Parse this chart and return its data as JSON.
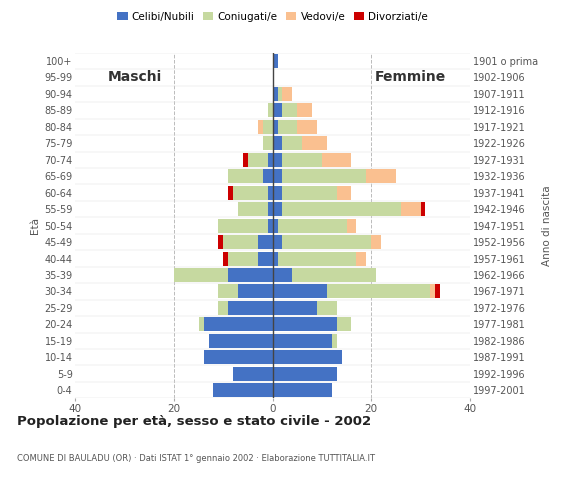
{
  "age_groups": [
    "0-4",
    "5-9",
    "10-14",
    "15-19",
    "20-24",
    "25-29",
    "30-34",
    "35-39",
    "40-44",
    "45-49",
    "50-54",
    "55-59",
    "60-64",
    "65-69",
    "70-74",
    "75-79",
    "80-84",
    "85-89",
    "90-94",
    "95-99",
    "100+"
  ],
  "birth_years": [
    "1997-2001",
    "1992-1996",
    "1987-1991",
    "1982-1986",
    "1977-1981",
    "1972-1976",
    "1967-1971",
    "1962-1966",
    "1957-1961",
    "1952-1956",
    "1947-1951",
    "1942-1946",
    "1937-1941",
    "1932-1936",
    "1927-1931",
    "1922-1926",
    "1917-1921",
    "1912-1916",
    "1907-1911",
    "1902-1906",
    "1901 o prima"
  ],
  "male": {
    "celibe": [
      12,
      8,
      14,
      13,
      14,
      9,
      7,
      9,
      3,
      3,
      1,
      1,
      1,
      2,
      1,
      0,
      0,
      0,
      0,
      0,
      0
    ],
    "coniugato": [
      0,
      0,
      0,
      0,
      1,
      2,
      4,
      11,
      6,
      7,
      10,
      6,
      7,
      7,
      4,
      2,
      2,
      1,
      0,
      0,
      0
    ],
    "vedovo": [
      0,
      0,
      0,
      0,
      0,
      0,
      0,
      0,
      0,
      0,
      0,
      0,
      0,
      0,
      0,
      0,
      1,
      0,
      0,
      0,
      0
    ],
    "divorziato": [
      0,
      0,
      0,
      0,
      0,
      0,
      0,
      0,
      1,
      1,
      0,
      0,
      1,
      0,
      1,
      0,
      0,
      0,
      0,
      0,
      0
    ]
  },
  "female": {
    "nubile": [
      12,
      13,
      14,
      12,
      13,
      9,
      11,
      4,
      1,
      2,
      1,
      2,
      2,
      2,
      2,
      2,
      1,
      2,
      1,
      0,
      1
    ],
    "coniugata": [
      0,
      0,
      0,
      1,
      3,
      4,
      21,
      17,
      16,
      18,
      14,
      24,
      11,
      17,
      8,
      4,
      4,
      3,
      1,
      0,
      0
    ],
    "vedova": [
      0,
      0,
      0,
      0,
      0,
      0,
      1,
      0,
      2,
      2,
      2,
      4,
      3,
      6,
      6,
      5,
      4,
      3,
      2,
      0,
      0
    ],
    "divorziata": [
      0,
      0,
      0,
      0,
      0,
      0,
      1,
      0,
      0,
      0,
      0,
      1,
      0,
      0,
      0,
      0,
      0,
      0,
      0,
      0,
      0
    ]
  },
  "color_celibe": "#4472c4",
  "color_coniugato": "#c6d9a0",
  "color_vedovo": "#fac090",
  "color_divorziato": "#cc0000",
  "title": "Popolazione per età, sesso e stato civile - 2002",
  "subtitle": "COMUNE DI BAULADU (OR) · Dati ISTAT 1° gennaio 2002 · Elaborazione TUTTITALIA.IT",
  "xlabel_left": "Maschi",
  "xlabel_right": "Femmine",
  "ylabel_left": "Età",
  "ylabel_right": "Anno di nascita",
  "xlim": 40,
  "legend_labels": [
    "Celibi/Nubili",
    "Coniugati/e",
    "Vedovi/e",
    "Divorziati/e"
  ],
  "background_color": "#ffffff",
  "figsize": [
    5.8,
    4.8
  ],
  "dpi": 100
}
